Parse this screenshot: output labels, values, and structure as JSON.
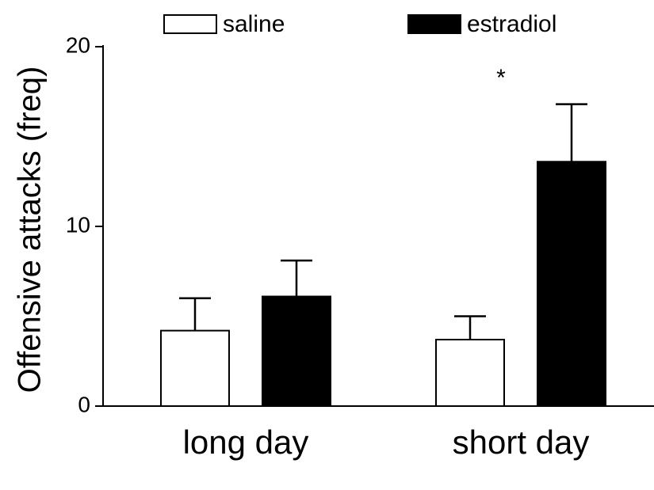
{
  "chart_data": {
    "type": "bar",
    "y_label": "Offensive attacks (freq)",
    "categories": [
      "long day",
      "short day"
    ],
    "series": [
      {
        "name": "saline",
        "color": "#ffffff",
        "values": [
          4.2,
          3.7
        ],
        "errors": [
          1.8,
          1.3
        ]
      },
      {
        "name": "estradiol",
        "color": "#000000",
        "values": [
          6.1,
          13.6
        ],
        "errors": [
          2.0,
          3.2
        ]
      }
    ],
    "annotations": [
      "*"
    ],
    "ylim": [
      0,
      20
    ],
    "yticks": [
      0,
      10,
      20
    ]
  }
}
